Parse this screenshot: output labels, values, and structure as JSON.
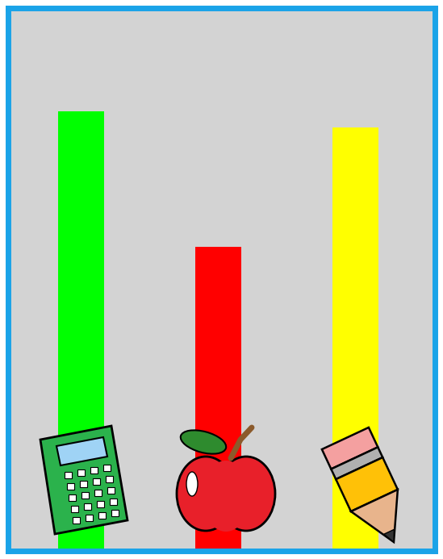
{
  "chart_data": {
    "type": "bar",
    "categories": [
      null,
      null,
      null
    ],
    "values": [
      8.1,
      5.6,
      7.8
    ],
    "colors": [
      "#00ff00",
      "#ff0000",
      "#ffff00"
    ],
    "ylim": [
      0,
      10
    ],
    "yticks": [],
    "tick_labels": false,
    "grid": false
  }
}
